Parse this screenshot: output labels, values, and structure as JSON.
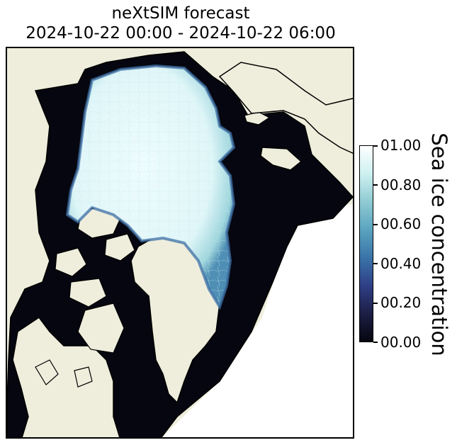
{
  "title": {
    "line1": "neXtSIM forecast",
    "line2": "2024-10-22 00:00 - 2024-10-22 06:00"
  },
  "colorbar": {
    "label": "Sea ice concentration",
    "ticks": [
      "01.00",
      "00.80",
      "00.60",
      "00.40",
      "00.20",
      "00.00"
    ],
    "range": [
      0,
      1
    ],
    "colormap": [
      "#05060f",
      "#1c1e45",
      "#2f3f86",
      "#3a73a8",
      "#5aa3bf",
      "#8fcbd3",
      "#cdf0f0",
      "#ffffff"
    ]
  },
  "colors": {
    "land": "#efeedd",
    "open_water": "#05060f",
    "pack_ice": "#e4f9fb",
    "coastline": "#000000"
  }
}
